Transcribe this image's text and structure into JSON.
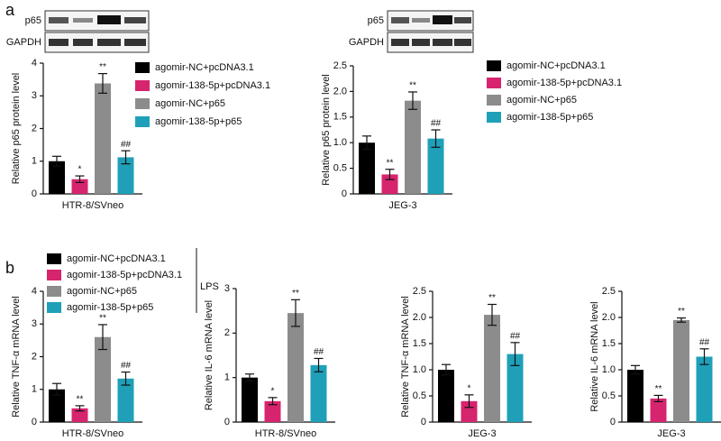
{
  "panel_labels": [
    "a",
    "b"
  ],
  "blots": [
    {
      "labels": [
        "p65",
        "GAPDH"
      ]
    },
    {
      "labels": [
        "p65",
        "GAPDH"
      ]
    }
  ],
  "lps_label": "LPS",
  "chart_data": [
    {
      "type": "bar",
      "y_label": "Relative p65 protein level",
      "categories": [
        "HTR-8/SVneo"
      ],
      "ylim": [
        0,
        4
      ],
      "yticks": [
        0,
        1,
        2,
        3,
        4
      ],
      "legend": true,
      "series": [
        {
          "name": "agomir-NC+pcDNA3.1",
          "color": "#000000",
          "values": [
            1.0
          ],
          "errors": [
            0.15
          ]
        },
        {
          "name": "agomir-138-5p+pcDNA3.1",
          "color": "#d6246e",
          "values": [
            0.45
          ],
          "errors": [
            0.1
          ],
          "marks": [
            "*"
          ]
        },
        {
          "name": "agomir-NC+p65",
          "color": "#8c8c8c",
          "values": [
            3.38
          ],
          "errors": [
            0.3
          ],
          "marks": [
            "**"
          ]
        },
        {
          "name": "agomir-138-5p+p65",
          "color": "#1fa0b8",
          "values": [
            1.12
          ],
          "errors": [
            0.2
          ],
          "marks": [
            "##"
          ]
        }
      ]
    },
    {
      "type": "bar",
      "y_label": "Relative p65 protein level",
      "categories": [
        "JEG-3"
      ],
      "ylim": [
        0,
        2.5
      ],
      "yticks": [
        0,
        0.5,
        {
          "value": 1,
          "label": "1.0"
        },
        1.5,
        {
          "value": 2,
          "label": "2.0"
        },
        2.5
      ],
      "legend": true,
      "series": [
        {
          "name": "agomir-NC+pcDNA3.1",
          "color": "#000000",
          "values": [
            1.0
          ],
          "errors": [
            0.13
          ]
        },
        {
          "name": "agomir-138-5p+pcDNA3.1",
          "color": "#d6246e",
          "values": [
            0.38
          ],
          "errors": [
            0.1
          ],
          "marks": [
            "**"
          ]
        },
        {
          "name": "agomir-NC+p65",
          "color": "#8c8c8c",
          "values": [
            1.82
          ],
          "errors": [
            0.17
          ],
          "marks": [
            "**"
          ]
        },
        {
          "name": "agomir-138-5p+p65",
          "color": "#1fa0b8",
          "values": [
            1.08
          ],
          "errors": [
            0.17
          ],
          "marks": [
            "##"
          ]
        }
      ]
    },
    {
      "type": "bar",
      "y_label": "Relative TNF-α mRNA level",
      "categories": [
        "HTR-8/SVneo"
      ],
      "ylim": [
        0,
        4
      ],
      "yticks": [
        0,
        1,
        2,
        3,
        4
      ],
      "legend": true,
      "series": [
        {
          "name": "agomir-NC+pcDNA3.1",
          "color": "#000000",
          "values": [
            1.0
          ],
          "errors": [
            0.18
          ]
        },
        {
          "name": "agomir-138-5p+pcDNA3.1",
          "color": "#d6246e",
          "values": [
            0.42
          ],
          "errors": [
            0.08
          ],
          "marks": [
            "**"
          ]
        },
        {
          "name": "agomir-NC+p65",
          "color": "#8c8c8c",
          "values": [
            2.6
          ],
          "errors": [
            0.38
          ],
          "marks": [
            "**"
          ]
        },
        {
          "name": "agomir-138-5p+p65",
          "color": "#1fa0b8",
          "values": [
            1.33
          ],
          "errors": [
            0.2
          ],
          "marks": [
            "##"
          ]
        }
      ]
    },
    {
      "type": "bar",
      "y_label": "Relative IL-6 mRNA level",
      "categories": [
        "HTR-8/SVneo"
      ],
      "ylim": [
        0,
        3
      ],
      "yticks": [
        0,
        1,
        2,
        3
      ],
      "legend": false,
      "series": [
        {
          "color": "#000000",
          "values": [
            1.0
          ],
          "errors": [
            0.08
          ]
        },
        {
          "color": "#d6246e",
          "values": [
            0.47
          ],
          "errors": [
            0.08
          ],
          "marks": [
            "*"
          ]
        },
        {
          "color": "#8c8c8c",
          "values": [
            2.45
          ],
          "errors": [
            0.3
          ],
          "marks": [
            "**"
          ]
        },
        {
          "color": "#1fa0b8",
          "values": [
            1.28
          ],
          "errors": [
            0.15
          ],
          "marks": [
            "##"
          ]
        }
      ]
    },
    {
      "type": "bar",
      "y_label": "Relative TNF-α mRNA level",
      "categories": [
        "JEG-3"
      ],
      "ylim": [
        0,
        2.5
      ],
      "yticks": [
        0,
        0.5,
        {
          "value": 1,
          "label": "1.0"
        },
        1.5,
        {
          "value": 2,
          "label": "2.0"
        },
        2.5
      ],
      "legend": false,
      "series": [
        {
          "color": "#000000",
          "values": [
            1.0
          ],
          "errors": [
            0.1
          ]
        },
        {
          "color": "#d6246e",
          "values": [
            0.4
          ],
          "errors": [
            0.12
          ],
          "marks": [
            "*"
          ]
        },
        {
          "color": "#8c8c8c",
          "values": [
            2.05
          ],
          "errors": [
            0.2
          ],
          "marks": [
            "**"
          ]
        },
        {
          "color": "#1fa0b8",
          "values": [
            1.3
          ],
          "errors": [
            0.22
          ],
          "marks": [
            "##"
          ]
        }
      ]
    },
    {
      "type": "bar",
      "y_label": "Relative IL-6 mRNA level",
      "categories": [
        "JEG-3"
      ],
      "ylim": [
        0,
        2.5
      ],
      "yticks": [
        0,
        0.5,
        {
          "value": 1,
          "label": "1.0"
        },
        1.5,
        {
          "value": 2,
          "label": "2.0"
        },
        2.5
      ],
      "legend": false,
      "series": [
        {
          "color": "#000000",
          "values": [
            1.0
          ],
          "errors": [
            0.08
          ]
        },
        {
          "color": "#d6246e",
          "values": [
            0.45
          ],
          "errors": [
            0.06
          ],
          "marks": [
            "**"
          ]
        },
        {
          "color": "#8c8c8c",
          "values": [
            1.95
          ],
          "errors": [
            0.04
          ],
          "marks": [
            "**"
          ]
        },
        {
          "color": "#1fa0b8",
          "values": [
            1.25
          ],
          "errors": [
            0.15
          ],
          "marks": [
            "##"
          ]
        }
      ]
    }
  ]
}
